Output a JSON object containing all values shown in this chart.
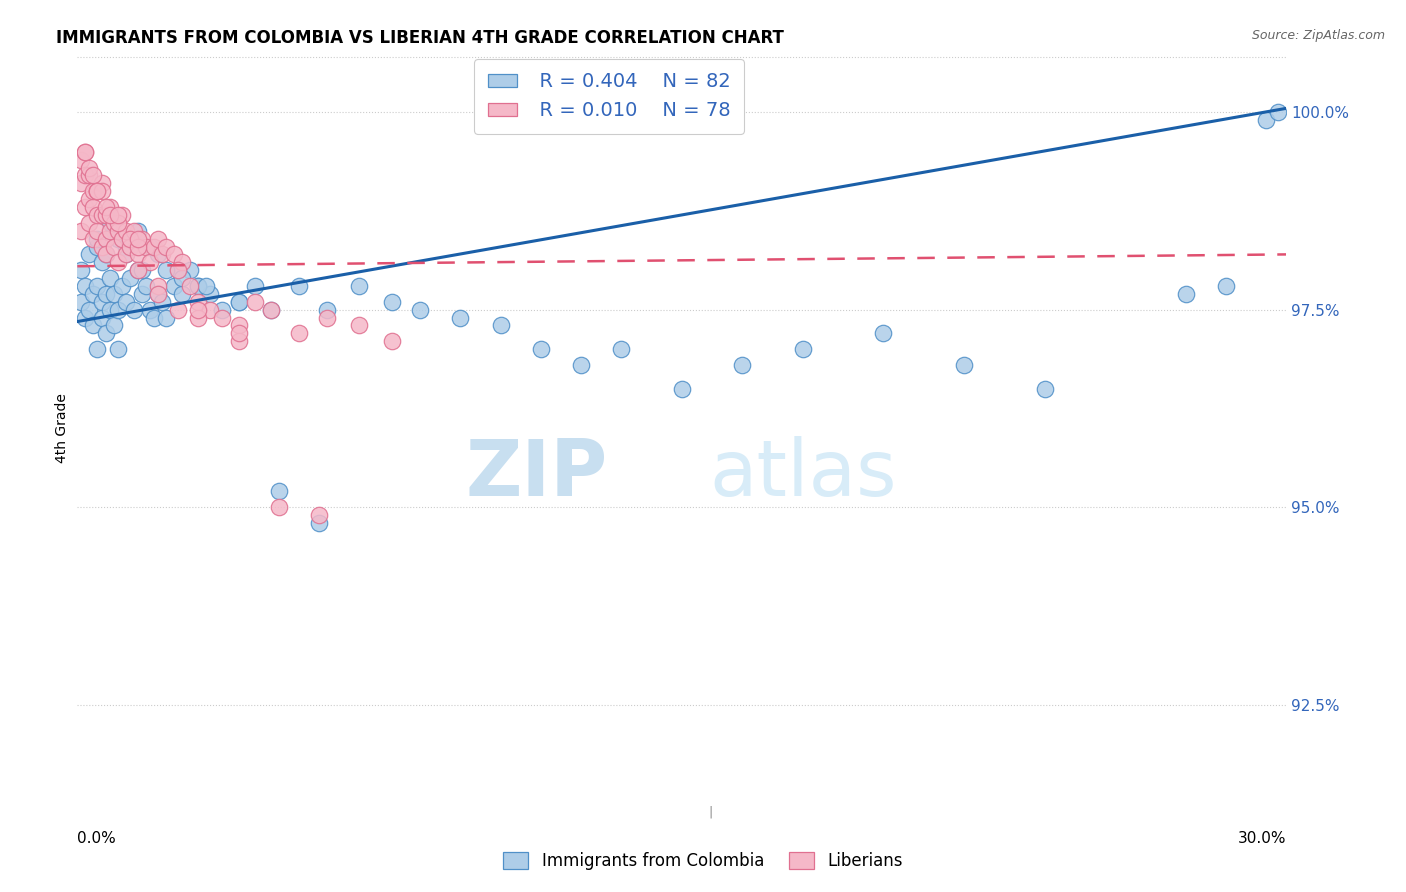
{
  "title": "IMMIGRANTS FROM COLOMBIA VS LIBERIAN 4TH GRADE CORRELATION CHART",
  "source": "Source: ZipAtlas.com",
  "ylabel": "4th Grade",
  "yticks": [
    92.5,
    95.0,
    97.5,
    100.0
  ],
  "ytick_labels": [
    "92.5%",
    "95.0%",
    "97.5%",
    "100.0%"
  ],
  "xmin": 0.0,
  "xmax": 0.3,
  "ymin": 91.2,
  "ymax": 100.8,
  "legend_r_blue": "R = 0.404",
  "legend_n_blue": "N = 82",
  "legend_r_pink": "R = 0.010",
  "legend_n_pink": "N = 78",
  "blue_face": "#aecde8",
  "pink_face": "#f5b8c8",
  "blue_edge": "#5090c8",
  "pink_edge": "#e07090",
  "blue_line": "#1a5fa8",
  "pink_line": "#e05070",
  "text_color": "#3366bb",
  "grid_color": "#cccccc",
  "watermark_color": "#d8ecf8",
  "watermark": "ZIPatlas",
  "blue_label": "Immigrants from Colombia",
  "pink_label": "Liberians",
  "blue_x": [
    0.001,
    0.001,
    0.002,
    0.002,
    0.003,
    0.003,
    0.004,
    0.004,
    0.005,
    0.005,
    0.005,
    0.006,
    0.006,
    0.006,
    0.007,
    0.007,
    0.008,
    0.008,
    0.009,
    0.009,
    0.01,
    0.01,
    0.011,
    0.012,
    0.013,
    0.014,
    0.015,
    0.016,
    0.017,
    0.018,
    0.019,
    0.02,
    0.021,
    0.022,
    0.024,
    0.026,
    0.028,
    0.03,
    0.033,
    0.036,
    0.04,
    0.044,
    0.048,
    0.055,
    0.062,
    0.07,
    0.078,
    0.085,
    0.095,
    0.105,
    0.115,
    0.125,
    0.135,
    0.15,
    0.165,
    0.18,
    0.2,
    0.22,
    0.24,
    0.005,
    0.007,
    0.009,
    0.012,
    0.016,
    0.02,
    0.025,
    0.03,
    0.008,
    0.01,
    0.012,
    0.015,
    0.018,
    0.022,
    0.026,
    0.032,
    0.04,
    0.05,
    0.06,
    0.275,
    0.285,
    0.295,
    0.298
  ],
  "blue_y": [
    97.6,
    98.0,
    97.4,
    97.8,
    97.5,
    98.2,
    97.3,
    97.7,
    97.8,
    98.3,
    97.0,
    97.6,
    98.1,
    97.4,
    97.7,
    97.2,
    97.5,
    97.9,
    97.3,
    97.7,
    97.5,
    97.0,
    97.8,
    97.6,
    97.9,
    97.5,
    98.0,
    97.7,
    97.8,
    97.5,
    97.4,
    97.7,
    97.6,
    97.4,
    97.8,
    97.7,
    98.0,
    97.8,
    97.7,
    97.5,
    97.6,
    97.8,
    97.5,
    97.8,
    97.5,
    97.8,
    97.6,
    97.5,
    97.4,
    97.3,
    97.0,
    96.8,
    97.0,
    96.5,
    96.8,
    97.0,
    97.2,
    96.8,
    96.5,
    98.4,
    98.2,
    98.5,
    98.3,
    98.0,
    98.2,
    98.0,
    97.8,
    98.6,
    98.4,
    98.2,
    98.5,
    98.3,
    98.0,
    97.9,
    97.8,
    97.6,
    95.2,
    94.8,
    97.7,
    97.8,
    99.9,
    100.0
  ],
  "pink_x": [
    0.001,
    0.001,
    0.001,
    0.002,
    0.002,
    0.002,
    0.003,
    0.003,
    0.003,
    0.004,
    0.004,
    0.004,
    0.005,
    0.005,
    0.005,
    0.006,
    0.006,
    0.006,
    0.007,
    0.007,
    0.007,
    0.008,
    0.008,
    0.009,
    0.009,
    0.01,
    0.01,
    0.011,
    0.011,
    0.012,
    0.012,
    0.013,
    0.014,
    0.015,
    0.016,
    0.017,
    0.018,
    0.019,
    0.02,
    0.021,
    0.022,
    0.024,
    0.026,
    0.028,
    0.03,
    0.033,
    0.036,
    0.04,
    0.044,
    0.048,
    0.055,
    0.062,
    0.07,
    0.078,
    0.003,
    0.005,
    0.007,
    0.01,
    0.013,
    0.002,
    0.004,
    0.006,
    0.008,
    0.015,
    0.02,
    0.025,
    0.03,
    0.04,
    0.015,
    0.02,
    0.03,
    0.005,
    0.01,
    0.015,
    0.025,
    0.04,
    0.05,
    0.06
  ],
  "pink_y": [
    98.5,
    99.1,
    99.4,
    98.8,
    99.2,
    99.5,
    98.6,
    98.9,
    99.2,
    98.4,
    98.8,
    99.0,
    98.5,
    98.7,
    99.0,
    98.3,
    98.7,
    99.1,
    98.4,
    98.7,
    98.2,
    98.5,
    98.8,
    98.3,
    98.6,
    98.1,
    98.5,
    98.4,
    98.7,
    98.2,
    98.5,
    98.3,
    98.5,
    98.2,
    98.4,
    98.3,
    98.1,
    98.3,
    98.4,
    98.2,
    98.3,
    98.2,
    98.1,
    97.8,
    97.6,
    97.5,
    97.4,
    97.3,
    97.6,
    97.5,
    97.2,
    97.4,
    97.3,
    97.1,
    99.3,
    99.0,
    98.8,
    98.6,
    98.4,
    99.5,
    99.2,
    99.0,
    98.7,
    98.3,
    97.8,
    97.5,
    97.4,
    97.1,
    98.0,
    97.7,
    97.5,
    99.0,
    98.7,
    98.4,
    98.0,
    97.2,
    95.0,
    94.9
  ]
}
